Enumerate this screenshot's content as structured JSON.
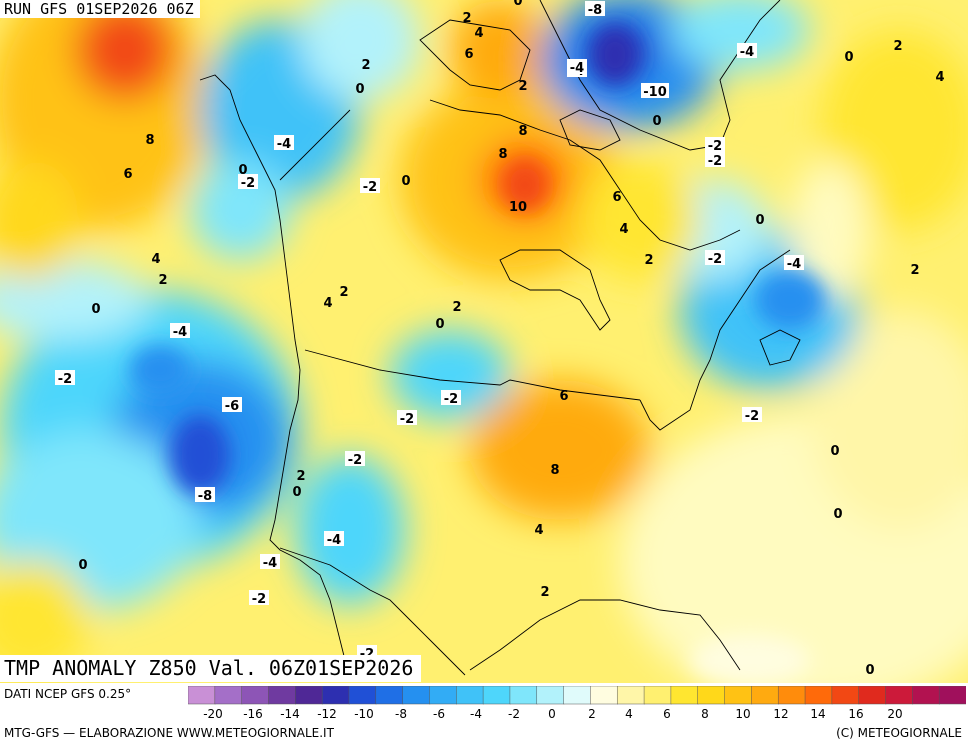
{
  "header": {
    "run_label": "RUN GFS 01SEP2026 06Z"
  },
  "title": "TMP ANOMALY Z850 Val. 06Z01SEP2026",
  "footer": {
    "source": "DATI NCEP GFS 0.25°",
    "credit_left": "MTG-GFS — ELABORAZIONE WWW.METEOGIORNALE.IT",
    "credit_right": "(C) METEOGIORNALE"
  },
  "colorbar": {
    "colors": [
      "#c990d6",
      "#a46fc8",
      "#8d55b6",
      "#6f3aa0",
      "#4f2896",
      "#2d2fb0",
      "#2050d6",
      "#1f6fe6",
      "#2590f0",
      "#32acf5",
      "#40c2f8",
      "#4ed6fb",
      "#7fe6fb",
      "#b2f2fb",
      "#e0fbfb",
      "#fffde0",
      "#fff6a8",
      "#fff070",
      "#ffe630",
      "#ffd81a",
      "#ffc214",
      "#ffaa10",
      "#ff8c0c",
      "#ff6a0a",
      "#f24814",
      "#e02a1e",
      "#cc1a3a",
      "#b21250",
      "#a0105c"
    ],
    "ticks": [
      "-20",
      "-16",
      "-14",
      "-12",
      "-10",
      "-8",
      "-6",
      "-4",
      "-2",
      "0",
      "2",
      "4",
      "6",
      "8",
      "10",
      "12",
      "14",
      "16",
      "20"
    ]
  },
  "contour_labels": [
    {
      "text": "2",
      "bg": "yellow"
    },
    {
      "text": "4",
      "bg": "yellow"
    },
    {
      "text": "6",
      "bg": "yellow"
    },
    {
      "text": "2",
      "bg": "yellow"
    },
    {
      "text": "0",
      "bg": "yellow"
    },
    {
      "text": "2",
      "bg": "yellow"
    },
    {
      "text": "8",
      "bg": "yellow"
    },
    {
      "text": "8",
      "bg": "yellow"
    },
    {
      "text": "10",
      "bg": "yellow"
    },
    {
      "text": "6",
      "bg": "yellow"
    },
    {
      "text": "4",
      "bg": "yellow"
    },
    {
      "text": "2",
      "bg": "yellow"
    },
    {
      "text": "-2",
      "bg": "white"
    },
    {
      "text": "-8",
      "bg": "white"
    },
    {
      "text": "-4",
      "bg": "white"
    },
    {
      "text": "-10",
      "bg": "white"
    },
    {
      "text": "0",
      "bg": "yellow"
    },
    {
      "text": "-4",
      "bg": "white"
    },
    {
      "text": "-2",
      "bg": "white"
    },
    {
      "text": "-4",
      "bg": "white"
    },
    {
      "text": "0",
      "bg": "yellow"
    },
    {
      "text": "2",
      "bg": "yellow"
    },
    {
      "text": "4",
      "bg": "yellow"
    },
    {
      "text": "0",
      "bg": "yellow"
    },
    {
      "text": "-2",
      "bg": "white"
    },
    {
      "text": "-4",
      "bg": "white"
    },
    {
      "text": "2",
      "bg": "yellow"
    },
    {
      "text": "-2",
      "bg": "white"
    },
    {
      "text": "0",
      "bg": "yellow"
    },
    {
      "text": "0",
      "bg": "yellow"
    },
    {
      "text": "0",
      "bg": "yellow"
    },
    {
      "text": "8",
      "bg": "yellow"
    },
    {
      "text": "6",
      "bg": "yellow"
    },
    {
      "text": "0",
      "bg": "yellow"
    },
    {
      "text": "-2",
      "bg": "white"
    },
    {
      "text": "-4",
      "bg": "white"
    },
    {
      "text": "-2",
      "bg": "white"
    },
    {
      "text": "0",
      "bg": "yellow"
    },
    {
      "text": "4",
      "bg": "yellow"
    },
    {
      "text": "2",
      "bg": "yellow"
    },
    {
      "text": "4",
      "bg": "yellow"
    },
    {
      "text": "2",
      "bg": "yellow"
    },
    {
      "text": "0",
      "bg": "yellow"
    },
    {
      "text": "2",
      "bg": "yellow"
    },
    {
      "text": "0",
      "bg": "yellow"
    },
    {
      "text": "-2",
      "bg": "white"
    },
    {
      "text": "-4",
      "bg": "white"
    },
    {
      "text": "-2",
      "bg": "white"
    },
    {
      "text": "-6",
      "bg": "white"
    },
    {
      "text": "-8",
      "bg": "white"
    },
    {
      "text": "2",
      "bg": "yellow"
    },
    {
      "text": "0",
      "bg": "yellow"
    },
    {
      "text": "-2",
      "bg": "white"
    },
    {
      "text": "-4",
      "bg": "white"
    },
    {
      "text": "-4",
      "bg": "white"
    },
    {
      "text": "-2",
      "bg": "white"
    },
    {
      "text": "0",
      "bg": "yellow"
    },
    {
      "text": "6",
      "bg": "yellow"
    },
    {
      "text": "8",
      "bg": "yellow"
    },
    {
      "text": "4",
      "bg": "yellow"
    },
    {
      "text": "2",
      "bg": "yellow"
    },
    {
      "text": "-2",
      "bg": "white"
    },
    {
      "text": "-2",
      "bg": "white"
    },
    {
      "text": "0",
      "bg": "yellow"
    }
  ]
}
